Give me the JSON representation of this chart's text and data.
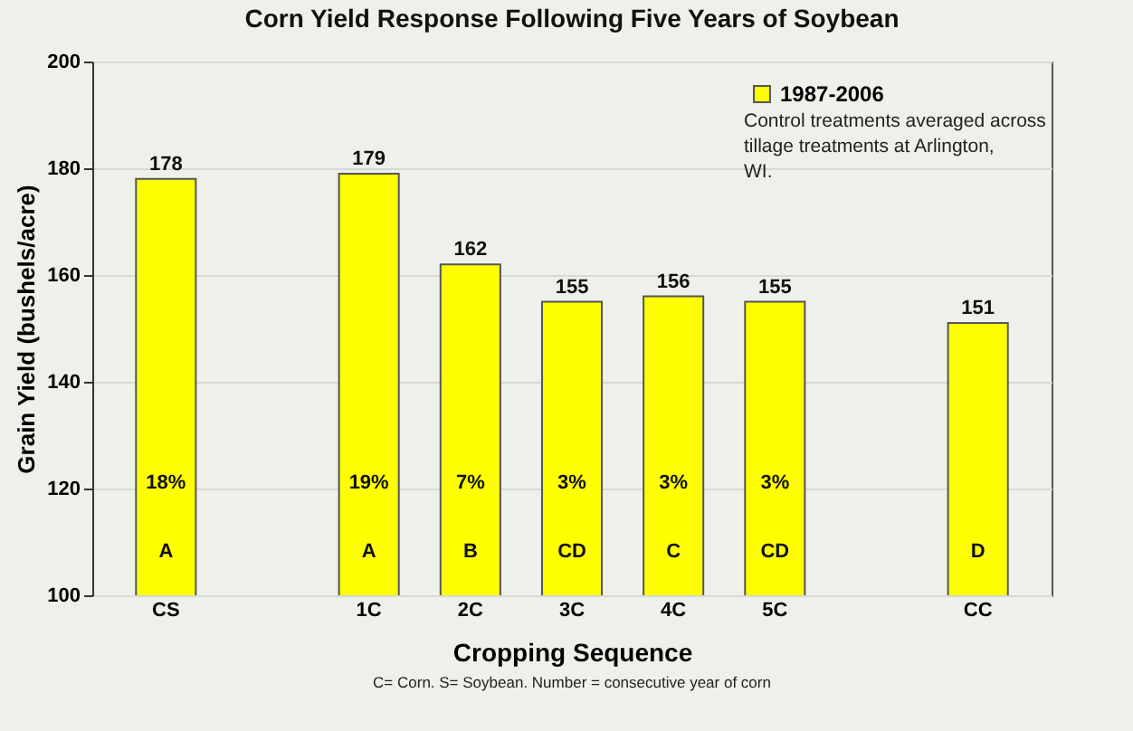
{
  "chart_data": {
    "type": "bar",
    "title": "Corn Yield Response Following Five Years of Soybean",
    "xlabel": "Cropping Sequence",
    "ylabel": "Grain Yield (bushels/acre)",
    "categories": [
      "CS",
      null,
      "1C",
      "2C",
      "3C",
      "4C",
      "5C",
      null,
      "CC"
    ],
    "series": [
      {
        "name": "1987-2006",
        "color": "#ffff00",
        "values": [
          178,
          null,
          179,
          162,
          155,
          156,
          155,
          null,
          151
        ]
      }
    ],
    "ylim": [
      100,
      200
    ],
    "yticks": [
      100,
      120,
      140,
      160,
      180,
      200
    ],
    "grid": "y",
    "legend": "top right",
    "data_labels": true,
    "annotations": [
      "Control treatments averaged across tillage treatments at Arlington, WI.",
      "C= Corn. S= Soybean. Number = consecutive year of corn",
      "18%",
      "A",
      "19%",
      "A",
      "7%",
      "B",
      "3%",
      "CD",
      "3%",
      "C",
      "3%",
      "CD",
      "D"
    ]
  }
}
